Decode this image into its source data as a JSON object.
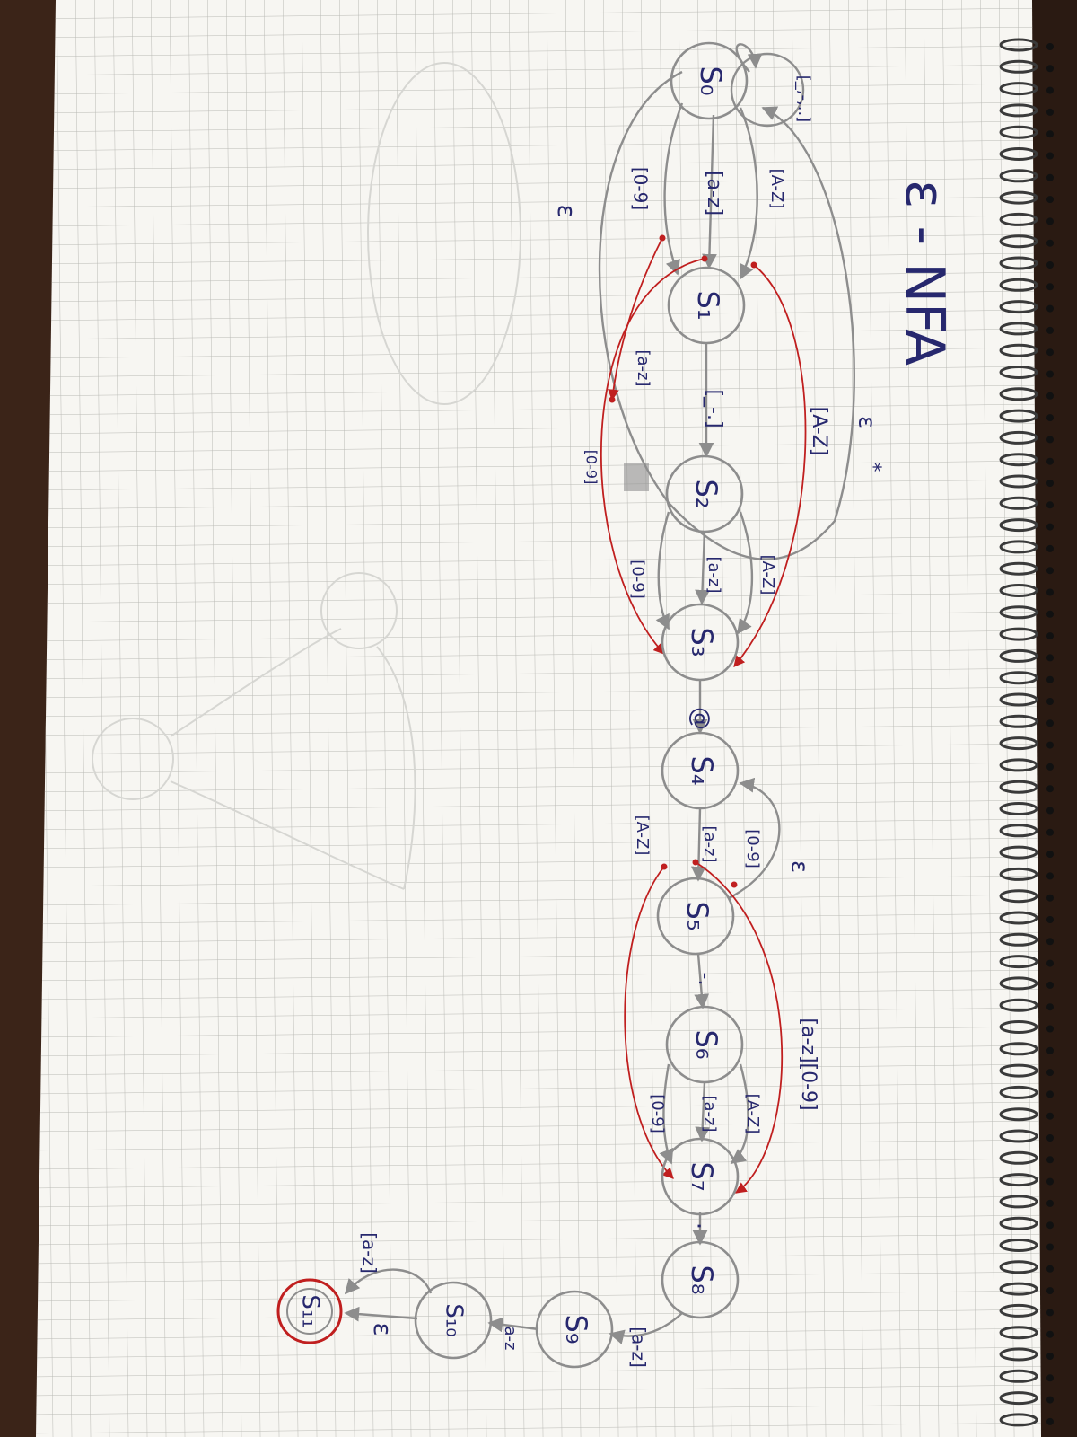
{
  "title": "ε - NFA",
  "colors": {
    "paper": "#f7f6f2",
    "grid": "#b9b9b4",
    "pencil": "#8d8d8d",
    "ink_blue": "#27286e",
    "ink_red": "#c01f1f",
    "desk": "#2a1a12",
    "spiral": "#3a3a3a"
  },
  "states": {
    "s0": "S₀",
    "s1": "S₁",
    "s2": "S₂",
    "s3": "S₃",
    "s4": "S₄",
    "s5": "S₅",
    "s6": "S₆",
    "s7": "S₇",
    "s8": "S₈",
    "s9": "S₉",
    "s10": "S₁₀",
    "s11": "S₁₁"
  },
  "labels": {
    "s0_loop": "[_,-,..]",
    "s0_s1_lower": "[a-z]",
    "s0_s1_upper": "[A-Z]",
    "s0_s1_digits": "[0-9]",
    "eps_outer": "ε",
    "s1_s2_dot": "[_-.]",
    "s1_s3_lower": "[a-z]",
    "s1_s3_digits": "[0-9]",
    "s1_s3_upper": "[A-Z]",
    "s2_s3_lower": "[a-z]",
    "s2_s3_upper": "[A-Z]",
    "s2_s3_digits": "[0-9]",
    "eps_star": "ε",
    "star": "*",
    "at": "@",
    "s4_s5_upper": "[A-Z]",
    "s4_s5_lower": "[a-z]",
    "s4_s5_digits": "[0-9]",
    "eps_s5": "ε",
    "s5_s6_dot": "-.",
    "s5_s7_mixed": "[a-z][0-9]",
    "s6_s7_digits": "[0-9]",
    "s6_s7_lower": "[a-z]",
    "s6_s7_upper": "[A-Z]",
    "s7_s8_dot": ".",
    "s8_s9": "[a-z]",
    "s9_s10": "a-z",
    "s10_s11_eps": "ε",
    "s10_s11_range": "[a-z]"
  }
}
